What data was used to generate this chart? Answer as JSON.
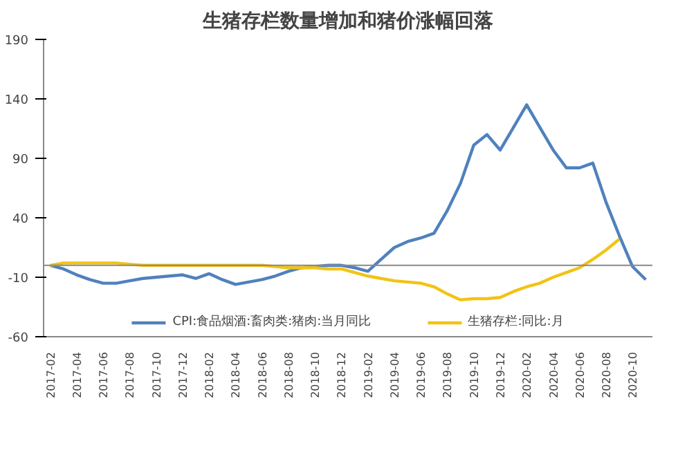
{
  "chart_data": {
    "type": "line",
    "title": "生猪存栏数量增加和猪价涨幅回落",
    "categories": [
      "2017-02",
      null,
      "2017-04",
      null,
      "2017-06",
      null,
      "2017-08",
      null,
      "2017-10",
      null,
      "2017-12",
      null,
      "2018-02",
      null,
      "2018-04",
      null,
      "2018-06",
      null,
      "2018-08",
      null,
      "2018-10",
      null,
      "2018-12",
      null,
      "2019-02",
      null,
      "2019-04",
      null,
      "2019-06",
      null,
      "2019-08",
      null,
      "2019-10",
      null,
      "2019-12",
      null,
      "2020-02",
      null,
      "2020-04",
      null,
      "2020-06",
      null,
      "2020-08",
      null,
      "2020-10",
      null
    ],
    "series": [
      {
        "name": "CPI:食品烟酒:畜肉类:猪肉:当月同比",
        "color": "#4f81bd",
        "values": [
          0,
          -3,
          -8,
          -12,
          -15,
          -15,
          -13,
          -11,
          -10,
          -9,
          -8,
          -11,
          -7,
          -12,
          -16,
          -14,
          -12,
          -9,
          -5,
          -2,
          -1,
          0,
          0,
          -2,
          -5,
          5,
          15,
          20,
          23,
          27,
          46,
          69,
          101,
          110,
          97,
          116,
          135,
          116,
          97,
          82,
          82,
          86,
          53,
          25,
          -1,
          -12
        ]
      },
      {
        "name": "生猪存栏:同比:月",
        "color": "#f2c314",
        "values": [
          0,
          2,
          2,
          2,
          2,
          2,
          1,
          0,
          0,
          0,
          0,
          0,
          0,
          0,
          0,
          0,
          0,
          -1,
          -2,
          -2,
          -2,
          -3,
          -3,
          -6,
          -9,
          -11,
          -13,
          -14,
          -15,
          -18,
          -24,
          -29,
          -28,
          -28,
          -27,
          -22,
          -18,
          -15,
          -10,
          -6,
          -2,
          5,
          13,
          22,
          null,
          null
        ]
      }
    ],
    "ref_lines": [
      {
        "axis": "y",
        "value": 0,
        "color": "#888888"
      }
    ],
    "ylim": [
      -60,
      190
    ],
    "yticks": [
      -60,
      -10,
      40,
      90,
      140,
      190
    ],
    "grid": false,
    "legend": "bottom"
  }
}
